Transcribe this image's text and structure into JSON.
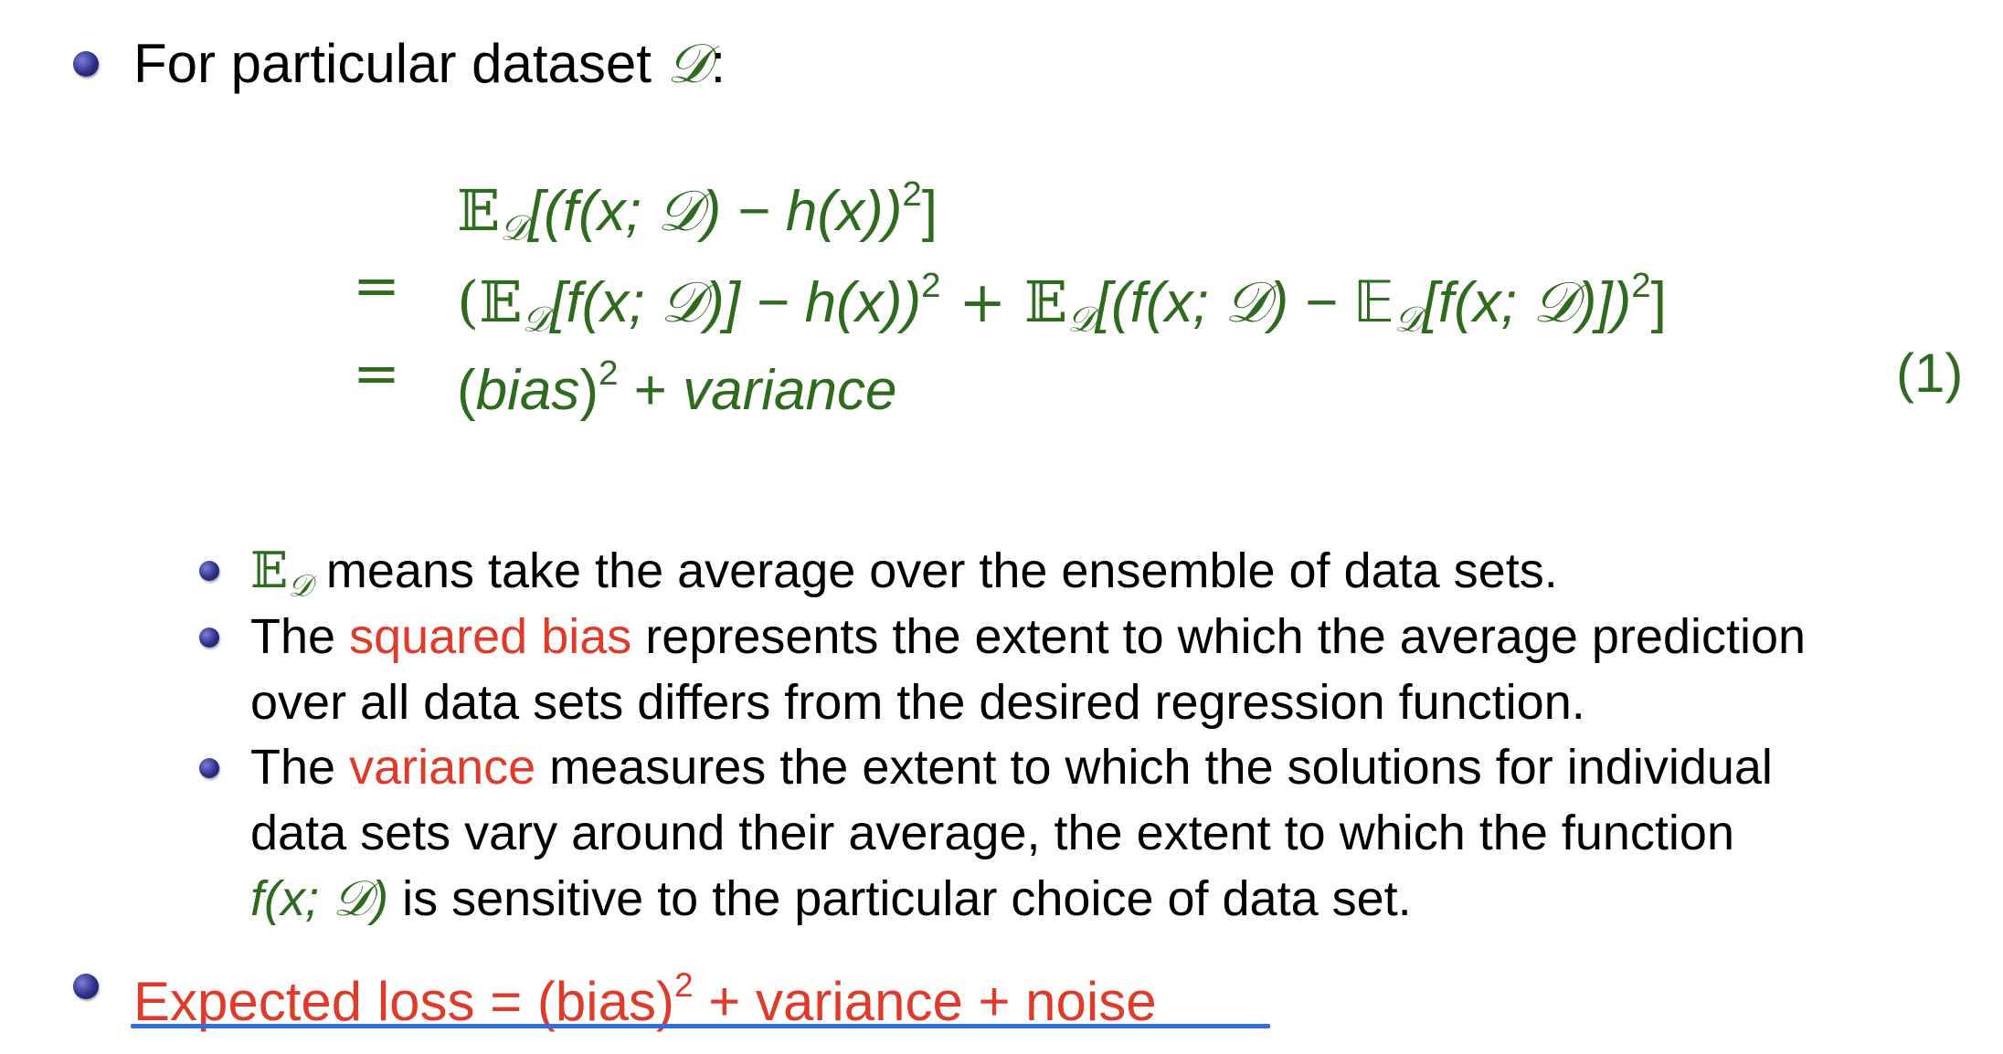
{
  "bullet1": {
    "text": "For particular dataset ",
    "symbol": "𝒟",
    "colon": ":"
  },
  "equation": {
    "number": "(1)",
    "line1": {
      "expectation": "𝔼",
      "subscript": "𝒟",
      "body": "[(f(x; 𝒟) − h(x))",
      "power": "2",
      "close": "]"
    },
    "line2": {
      "eq": "=",
      "part1": "(𝔼",
      "sub1": "𝒟",
      "part2": "[f(x; 𝒟)] − h(x))",
      "pow1": "2",
      "part3": " + 𝔼",
      "sub2": "𝒟",
      "part4": "[(f(x; 𝒟) − 𝔼",
      "sub3": "𝒟",
      "part5": "[f(x; 𝒟)])",
      "pow2": "2",
      "close": "]"
    },
    "line3": {
      "eq": "=",
      "open": "(",
      "bias": "bias",
      "close": ")",
      "power": "2",
      "plus": " + ",
      "variance": "variance"
    }
  },
  "sub_bullets": {
    "item1": {
      "symbol": "𝔼",
      "subscript": "𝒟",
      "text": " means take the average over the ensemble of data sets."
    },
    "item2": {
      "prefix": "The ",
      "highlight": "squared bias",
      "line1_rest": " represents the extent to which the average prediction",
      "line2": "over all data sets differs from the desired regression function."
    },
    "item3": {
      "prefix": "The ",
      "highlight": "variance",
      "line1_rest": " measures the extent to which the solutions for individual",
      "line2": "data sets vary around their average, the extent to which the function",
      "line3_math": "f(x; 𝒟)",
      "line3_rest": " is sensitive to the particular choice of data set."
    }
  },
  "bullet2": {
    "text_before": "Expected loss = (bias)",
    "power": "2",
    "text_after": " + variance + noise"
  },
  "colors": {
    "math_green": "#2e6b1e",
    "highlight_red": "#e03a2a",
    "underline_blue": "#2f6fe0",
    "bullet_blue": "#2c2f8a"
  }
}
